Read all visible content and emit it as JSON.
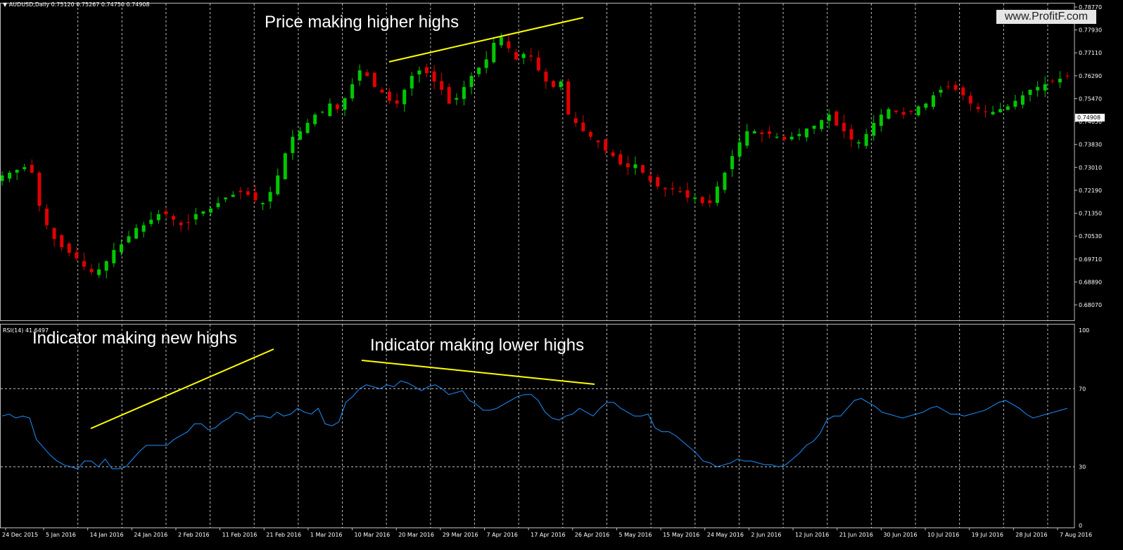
{
  "header": {
    "symbol": "AUDUSD,Daily",
    "ohlc": "0.75120 0.75267 0.74750 0.74908"
  },
  "watermark": "www.ProfitF.com",
  "rsi_label": "RSI(14) 41.6497",
  "annotations": {
    "price": "Price making higher highs",
    "ind_new": "Indicator making new highs",
    "ind_lower": "Indicator making lower highs"
  },
  "colors": {
    "bull": "#00c800",
    "bear": "#e00000",
    "rsi": "#1e90ff",
    "trendline": "#ffff00",
    "grid": "#bbbbbb"
  },
  "chart_data": [
    {
      "type": "candlestick",
      "title": "AUDUSD,Daily",
      "current_price": 0.74908,
      "ylim": [
        0.6807,
        0.7877
      ],
      "y_ticks": [
        "0.78770",
        "0.77930",
        "0.77110",
        "0.76290",
        "0.75470",
        "0.74650",
        "0.73830",
        "0.73010",
        "0.72190",
        "0.71350",
        "0.70530",
        "0.69710",
        "0.68890",
        "0.68070"
      ],
      "x_ticks": [
        "24 Dec 2015",
        "5 Jan 2016",
        "14 Jan 2016",
        "24 Jan 2016",
        "2 Feb 2016",
        "11 Feb 2016",
        "21 Feb 2016",
        "1 Mar 2016",
        "10 Mar 2016",
        "20 Mar 2016",
        "29 Mar 2016",
        "7 Apr 2016",
        "17 Apr 2016",
        "26 Apr 2016",
        "5 May 2016",
        "15 May 2016",
        "24 May 2016",
        "2 Jun 2016",
        "12 Jun 2016",
        "21 Jun 2016",
        "30 Jun 2016",
        "10 Jul 2016",
        "19 Jul 2016",
        "28 Jul 2016",
        "7 Aug 2016"
      ],
      "close_path": [
        0.726,
        0.727,
        0.728,
        0.729,
        0.727,
        0.715,
        0.708,
        0.703,
        0.7,
        0.698,
        0.696,
        0.693,
        0.691,
        0.692,
        0.695,
        0.699,
        0.701,
        0.704,
        0.707,
        0.708,
        0.71,
        0.712,
        0.712,
        0.71,
        0.708,
        0.709,
        0.712,
        0.713,
        0.714,
        0.716,
        0.718,
        0.719,
        0.72,
        0.719,
        0.717,
        0.716,
        0.72,
        0.726,
        0.734,
        0.74,
        0.742,
        0.745,
        0.748,
        0.749,
        0.752,
        0.75,
        0.754,
        0.759,
        0.764,
        0.762,
        0.758,
        0.756,
        0.753,
        0.752,
        0.757,
        0.762,
        0.764,
        0.763,
        0.76,
        0.757,
        0.752,
        0.754,
        0.758,
        0.762,
        0.765,
        0.768,
        0.774,
        0.776,
        0.772,
        0.768,
        0.77,
        0.769,
        0.764,
        0.76,
        0.758,
        0.76,
        0.748,
        0.745,
        0.742,
        0.74,
        0.738,
        0.735,
        0.733,
        0.73,
        0.729,
        0.73,
        0.727,
        0.724,
        0.722,
        0.721,
        0.721,
        0.72,
        0.718,
        0.718,
        0.716,
        0.716,
        0.722,
        0.727,
        0.733,
        0.738,
        0.742,
        0.742,
        0.741,
        0.741,
        0.74,
        0.739,
        0.74,
        0.741,
        0.743,
        0.744,
        0.746,
        0.748,
        0.744,
        0.742,
        0.739,
        0.738,
        0.741,
        0.745,
        0.748,
        0.75,
        0.749,
        0.748,
        0.749,
        0.751,
        0.752,
        0.755,
        0.757,
        0.758,
        0.757,
        0.755,
        0.752,
        0.75,
        0.749,
        0.749,
        0.75,
        0.751,
        0.753,
        0.755,
        0.757,
        0.758,
        0.759,
        0.76,
        0.761,
        0.762
      ],
      "series": [
        {
          "name": "AUDUSD,Daily"
        }
      ]
    },
    {
      "type": "line",
      "title": "RSI(14) 41.6497",
      "ylim": [
        0,
        100
      ],
      "y_ticks": [
        100,
        70,
        30,
        0
      ],
      "levels": [
        70,
        30
      ],
      "series": [
        {
          "name": "RSI(14)",
          "values": [
            56,
            57,
            55,
            56,
            55,
            44,
            40,
            36,
            33,
            31,
            30,
            29,
            33,
            33,
            30,
            34,
            29,
            29,
            30,
            34,
            38,
            41,
            41,
            41,
            41,
            44,
            46,
            48,
            52,
            52,
            49,
            50,
            53,
            55,
            58,
            57,
            54,
            56,
            56,
            55,
            58,
            56,
            57,
            60,
            58,
            57,
            60,
            52,
            51,
            53,
            63,
            66,
            70,
            72,
            71,
            70,
            72,
            71,
            74,
            73,
            71,
            69,
            71,
            72,
            70,
            67,
            68,
            69,
            64,
            62,
            59,
            59,
            60,
            62,
            64,
            66,
            67,
            67,
            64,
            58,
            55,
            54,
            56,
            57,
            60,
            58,
            56,
            60,
            63,
            63,
            60,
            58,
            56,
            56,
            57,
            50,
            48,
            48,
            46,
            43,
            40,
            37,
            33,
            32,
            30,
            31,
            32,
            34,
            33,
            33,
            32,
            31,
            31,
            30,
            31,
            34,
            37,
            41,
            43,
            47,
            54,
            56,
            56,
            60,
            64,
            65,
            63,
            61,
            58,
            57,
            56,
            55,
            56,
            57,
            58,
            60,
            61,
            59,
            57,
            57,
            56,
            57,
            58,
            59,
            61,
            63,
            64,
            62,
            60,
            57,
            55,
            56,
            57,
            58,
            59,
            60
          ]
        }
      ]
    }
  ]
}
